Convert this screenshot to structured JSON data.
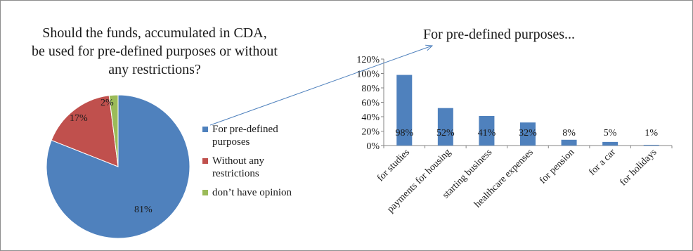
{
  "chart_data": [
    {
      "type": "pie",
      "title_lines": [
        "Should the funds, accumulated in CDA,",
        "be used for pre-defined purposes or without",
        "any restrictions?"
      ],
      "slices": [
        {
          "label": "For pre-defined purposes",
          "legend_lines": [
            "For pre-defined",
            "purposes"
          ],
          "value": 81,
          "value_label": "81%",
          "color": "#4f81bd"
        },
        {
          "label": "Without any restrictions",
          "legend_lines": [
            "Without any",
            "restrictions"
          ],
          "value": 17,
          "value_label": "17%",
          "color": "#c0504d"
        },
        {
          "label": "don’t have opinion",
          "legend_lines": [
            "don’t have opinion"
          ],
          "value": 2,
          "value_label": "2%",
          "color": "#9bbb59"
        }
      ],
      "legend_position": "right"
    },
    {
      "type": "bar",
      "title": "For pre-defined purposes...",
      "categories": [
        "for studies",
        "payments for housing",
        "starting business",
        "healthcare expenses",
        "for pension",
        "for a car",
        "for holidays"
      ],
      "values": [
        98,
        52,
        41,
        32,
        8,
        5,
        1
      ],
      "value_labels": [
        "98%",
        "52%",
        "41%",
        "32%",
        "8%",
        "5%",
        "1%"
      ],
      "ylim": [
        0,
        120
      ],
      "yticks": [
        "0%",
        "20%",
        "40%",
        "60%",
        "80%",
        "100%",
        "120%"
      ],
      "bar_color": "#4f81bd",
      "grid": false
    }
  ]
}
